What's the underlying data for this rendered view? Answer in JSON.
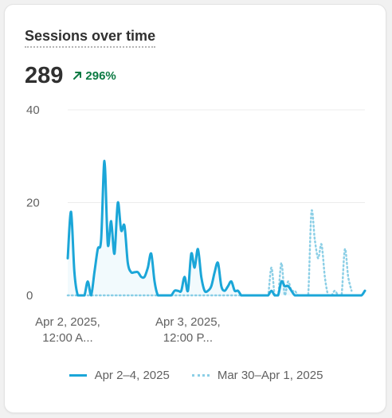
{
  "card": {
    "title": "Sessions over time",
    "metric_value": "289",
    "metric_change": "296%",
    "change_icon": "arrow-up-right-icon",
    "colors": {
      "current": "#1ba6d8",
      "previous": "#8ccfe6",
      "positive": "#0c7a43"
    }
  },
  "chart_data": {
    "type": "line",
    "y_ticks": [
      "40",
      "20",
      "0"
    ],
    "ylim": [
      0,
      40
    ],
    "grid": true,
    "x_tick_labels": [
      {
        "line1": "Apr 2, 2025,",
        "line2": "12:00 A..."
      },
      {
        "line1": "Apr 3, 2025,",
        "line2": "12:00 P..."
      }
    ],
    "x_tick_index": [
      0,
      36
    ],
    "legend_position": "bottom",
    "series": [
      {
        "name": "Apr 2–4, 2025",
        "style": "solid",
        "values": [
          8,
          18,
          5,
          0,
          0,
          0,
          3,
          0,
          5,
          10,
          12,
          29,
          11,
          16,
          9,
          20,
          14,
          15,
          7,
          5,
          5,
          5,
          4,
          4,
          6,
          9,
          3,
          0,
          0,
          0,
          0,
          0,
          1,
          1,
          1,
          4,
          1,
          9,
          6,
          10,
          4,
          1,
          1,
          2,
          5,
          7,
          2,
          1,
          2,
          3,
          1,
          1,
          0,
          0,
          0,
          0,
          0,
          0,
          0,
          0,
          0,
          1,
          0,
          0,
          3,
          2,
          2,
          1,
          0,
          0,
          0,
          0,
          0,
          0,
          0,
          0,
          0,
          0,
          0,
          0,
          0,
          0,
          0,
          0,
          0,
          0,
          0,
          0,
          0,
          1
        ]
      },
      {
        "name": "Mar 30–Apr 1, 2025",
        "style": "dotted",
        "values": [
          0,
          0,
          0,
          0,
          0,
          0,
          0,
          0,
          0,
          0,
          0,
          0,
          0,
          0,
          0,
          0,
          0,
          0,
          0,
          0,
          0,
          0,
          0,
          0,
          0,
          0,
          0,
          0,
          0,
          0,
          0,
          0,
          0,
          0,
          0,
          0,
          0,
          0,
          0,
          0,
          0,
          0,
          0,
          0,
          0,
          0,
          0,
          0,
          0,
          0,
          0,
          0,
          0,
          0,
          0,
          0,
          0,
          0,
          0,
          0,
          0,
          6,
          0,
          0,
          7,
          0,
          3,
          1,
          1,
          0,
          0,
          0,
          0,
          18,
          12,
          8,
          11,
          4,
          0,
          0,
          1,
          0,
          0,
          10,
          4,
          1
        ]
      }
    ]
  }
}
